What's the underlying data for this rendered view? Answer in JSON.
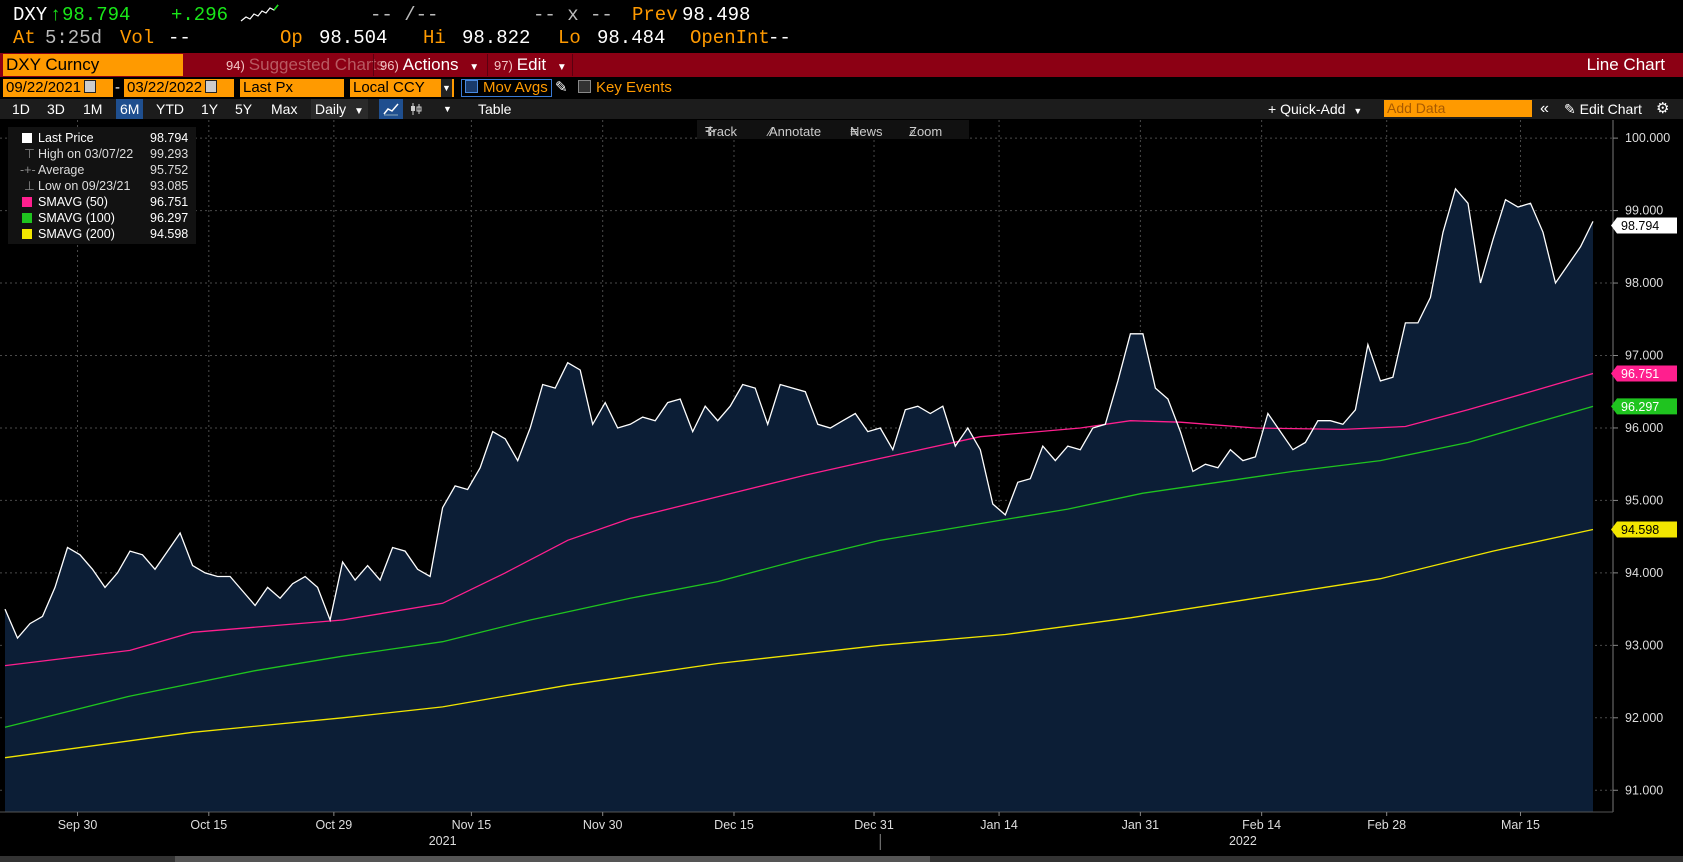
{
  "quote": {
    "ticker": "DXY",
    "last": "98.794",
    "change": "+.296",
    "time_label": "At",
    "time": "5:25d",
    "vol_label": "Vol",
    "vol": "--",
    "bidask": "-- /--",
    "size": "-- x --",
    "prev_label": "Prev",
    "prev": "98.498",
    "open_label": "Op",
    "open": "98.504",
    "high_label": "Hi",
    "high": "98.822",
    "low_label": "Lo",
    "low": "98.484",
    "openint_label": "OpenInt",
    "openint": "--"
  },
  "menubar": {
    "security": "DXY Curncy",
    "suggested_num": "94)",
    "suggested": "Suggested Charts",
    "actions_num": "96)",
    "actions": "Actions",
    "edit_num": "97)",
    "edit": "Edit",
    "chart_type": "Line Chart"
  },
  "controls": {
    "start_date": "09/22/2021",
    "date_sep": "-",
    "end_date": "03/22/2022",
    "field": "Last Px",
    "currency": "Local CCY",
    "mov_avgs": "Mov Avgs",
    "key_events": "Key Events"
  },
  "toolbar": {
    "periods": [
      "1D",
      "3D",
      "1M",
      "6M",
      "YTD",
      "1Y",
      "5Y",
      "Max"
    ],
    "selected_period": "6M",
    "frequency": "Daily",
    "table": "Table",
    "quick_add": "Quick-Add",
    "add_data_placeholder": "Add Data",
    "edit_chart": "Edit Chart"
  },
  "chart_tools": {
    "track": "Track",
    "annotate": "Annotate",
    "news": "News",
    "zoom": "Zoom"
  },
  "legend": [
    {
      "name": "Last Price",
      "value": "98.794",
      "color": "#ffffff"
    },
    {
      "name": "High on 03/07/22",
      "value": "99.293",
      "color": ""
    },
    {
      "name": "Average",
      "value": "95.752",
      "color": ""
    },
    {
      "name": "Low on 09/23/21",
      "value": "93.085",
      "color": ""
    },
    {
      "name": "SMAVG (50)",
      "value": "96.751",
      "color": "#ff1f8e"
    },
    {
      "name": "SMAVG (100)",
      "value": "96.297",
      "color": "#1fc41f"
    },
    {
      "name": "SMAVG (200)",
      "value": "94.598",
      "color": "#f2e600"
    }
  ],
  "chart_data": {
    "type": "line",
    "ylim": [
      90.7,
      100.25
    ],
    "xlim": [
      0,
      127
    ],
    "yticks": [
      "91.000",
      "92.000",
      "93.000",
      "94.000",
      "95.000",
      "96.000",
      "97.000",
      "98.000",
      "99.000",
      "100.000"
    ],
    "ytick_values": [
      91,
      92,
      93,
      94,
      95,
      96,
      97,
      98,
      99,
      100
    ],
    "xticks": [
      "Sep 30",
      "Oct 15",
      "Oct 29",
      "Nov 15",
      "Nov 30",
      "Dec 15",
      "Dec 31",
      "Jan 14",
      "Jan 31",
      "Feb 14",
      "Feb 28",
      "Mar 15"
    ],
    "xtick_positions": [
      5.8,
      16.3,
      26.3,
      37.3,
      47.8,
      58.3,
      69.5,
      79.5,
      90.8,
      100.5,
      110.5,
      121.2
    ],
    "years": [
      {
        "label": "2021",
        "pos": 35
      },
      {
        "label": "2022",
        "pos": 99
      }
    ],
    "year_divider_pos": 70,
    "colors": {
      "price": "#ffffff",
      "fill": "#0c1e36",
      "sma50": "#ff1f8e",
      "sma100": "#1fc41f",
      "sma200": "#f2e600"
    },
    "series": [
      {
        "name": "Last Price",
        "key": "price",
        "label": "98.794",
        "values": [
          93.5,
          93.1,
          93.3,
          93.4,
          93.8,
          94.35,
          94.25,
          94.05,
          93.8,
          94.0,
          94.3,
          94.25,
          94.05,
          94.3,
          94.55,
          94.1,
          94.0,
          93.95,
          93.95,
          93.75,
          93.55,
          93.8,
          93.65,
          93.85,
          93.95,
          93.8,
          93.35,
          94.15,
          93.9,
          94.1,
          93.9,
          94.35,
          94.3,
          94.05,
          93.95,
          94.9,
          95.2,
          95.15,
          95.45,
          95.95,
          95.85,
          95.55,
          96.0,
          96.6,
          96.55,
          96.9,
          96.8,
          96.05,
          96.35,
          96.0,
          96.05,
          96.15,
          96.1,
          96.35,
          96.4,
          95.95,
          96.3,
          96.1,
          96.3,
          96.6,
          96.55,
          96.05,
          96.6,
          96.55,
          96.5,
          96.05,
          96.0,
          96.1,
          96.2,
          95.95,
          96.0,
          95.7,
          96.25,
          96.3,
          96.2,
          96.3,
          95.75,
          96.0,
          95.7,
          94.95,
          94.8,
          95.25,
          95.3,
          95.75,
          95.55,
          95.75,
          95.7,
          96.0,
          96.05,
          96.65,
          97.3,
          97.3,
          96.55,
          96.4,
          95.95,
          95.4,
          95.5,
          95.45,
          95.7,
          95.55,
          95.6,
          96.2,
          95.95,
          95.7,
          95.8,
          96.1,
          96.1,
          96.05,
          96.25,
          97.15,
          96.65,
          96.7,
          97.45,
          97.45,
          97.8,
          98.7,
          99.3,
          99.1,
          98.0,
          98.6,
          99.15,
          99.05,
          99.1,
          98.7,
          98.0,
          98.25,
          98.5,
          98.85
        ],
        "last": 98.794
      },
      {
        "name": "SMAVG (50)",
        "key": "sma50",
        "label": "96.751",
        "points": [
          [
            0,
            92.72
          ],
          [
            10,
            92.93
          ],
          [
            15,
            93.18
          ],
          [
            27,
            93.35
          ],
          [
            35,
            93.58
          ],
          [
            40,
            94.0
          ],
          [
            45,
            94.45
          ],
          [
            50,
            94.75
          ],
          [
            57,
            95.05
          ],
          [
            64,
            95.35
          ],
          [
            70,
            95.58
          ],
          [
            78,
            95.88
          ],
          [
            86,
            96.0
          ],
          [
            90,
            96.1
          ],
          [
            94,
            96.08
          ],
          [
            100,
            96.0
          ],
          [
            107,
            95.98
          ],
          [
            112,
            96.02
          ],
          [
            117,
            96.25
          ],
          [
            122,
            96.5
          ],
          [
            127,
            96.751
          ]
        ],
        "last": 96.751
      },
      {
        "name": "SMAVG (100)",
        "key": "sma100",
        "label": "96.297",
        "points": [
          [
            0,
            91.87
          ],
          [
            10,
            92.3
          ],
          [
            20,
            92.65
          ],
          [
            27,
            92.85
          ],
          [
            35,
            93.05
          ],
          [
            42,
            93.35
          ],
          [
            50,
            93.65
          ],
          [
            57,
            93.88
          ],
          [
            64,
            94.2
          ],
          [
            70,
            94.45
          ],
          [
            78,
            94.68
          ],
          [
            85,
            94.88
          ],
          [
            91,
            95.1
          ],
          [
            97,
            95.25
          ],
          [
            103,
            95.4
          ],
          [
            110,
            95.55
          ],
          [
            117,
            95.8
          ],
          [
            122,
            96.05
          ],
          [
            127,
            96.297
          ]
        ],
        "last": 96.297
      },
      {
        "name": "SMAVG (200)",
        "key": "sma200",
        "label": "94.598",
        "points": [
          [
            0,
            91.45
          ],
          [
            15,
            91.8
          ],
          [
            27,
            92.0
          ],
          [
            35,
            92.15
          ],
          [
            45,
            92.45
          ],
          [
            57,
            92.75
          ],
          [
            70,
            93.0
          ],
          [
            80,
            93.15
          ],
          [
            90,
            93.38
          ],
          [
            100,
            93.65
          ],
          [
            110,
            93.92
          ],
          [
            119,
            94.3
          ],
          [
            127,
            94.598
          ]
        ],
        "last": 94.598
      }
    ]
  }
}
